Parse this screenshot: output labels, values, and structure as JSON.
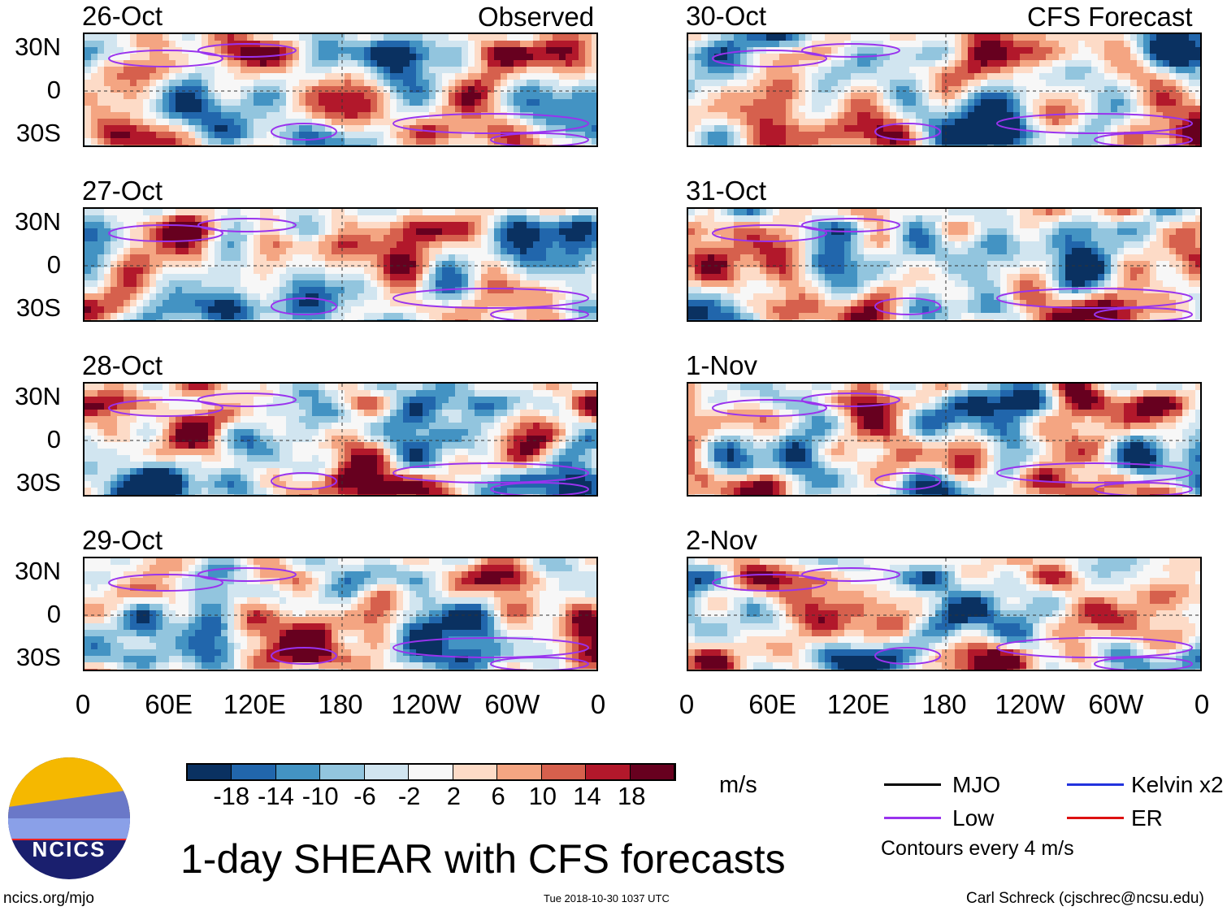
{
  "left_header": "Observed",
  "right_header": "CFS Forecast",
  "left_dates": [
    "26-Oct",
    "27-Oct",
    "28-Oct",
    "29-Oct"
  ],
  "right_dates": [
    "30-Oct",
    "31-Oct",
    "1-Nov",
    "2-Nov"
  ],
  "lat_labels": [
    "30N",
    "0",
    "30S"
  ],
  "lon_labels": [
    "0",
    "60E",
    "120E",
    "180",
    "120W",
    "60W",
    "0"
  ],
  "colorbar": {
    "colors": [
      "#0a3161",
      "#2166ac",
      "#4393c3",
      "#92c5de",
      "#d1e5f0",
      "#f7f7f7",
      "#fddbc7",
      "#f4a582",
      "#d6604d",
      "#b2182b",
      "#67001f"
    ],
    "labels": [
      "-18",
      "-14",
      "-10",
      "-6",
      "-2",
      "2",
      "6",
      "10",
      "14",
      "18"
    ],
    "units": "m/s"
  },
  "legend": {
    "items": [
      {
        "label": "MJO",
        "color": "#000000"
      },
      {
        "label": "Kelvin x2",
        "color": "#2233dd"
      },
      {
        "label": "Low",
        "color": "#9933ee"
      },
      {
        "label": "ER",
        "color": "#dd1111"
      }
    ],
    "note": "Contours every 4 m/s"
  },
  "title": "1-day SHEAR with CFS forecasts",
  "logo_text": "NCICS",
  "footer_left": "ncics.org/mjo",
  "footer_center": "Tue 2018-10-30 1037 UTC",
  "footer_right": "Carl Schreck (cjschrec@ncsu.edu)"
}
